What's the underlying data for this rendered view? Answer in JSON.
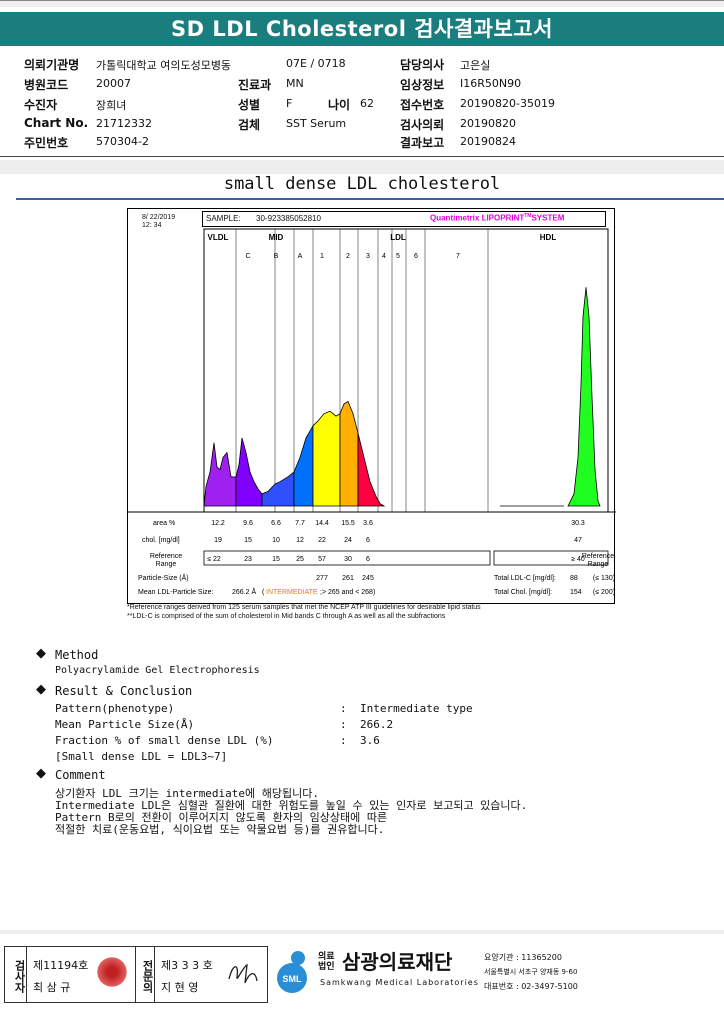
{
  "title": "SD LDL Cholesterol 검사결과보고서",
  "info": {
    "request_org_label": "의뢰기관명",
    "request_org": "가톨릭대학교 여의도성모병동",
    "ward": "07E / 0718",
    "doctor_label": "담당의사",
    "doctor": "고은실",
    "hospital_code_label": "병원코드",
    "hospital_code": "20007",
    "dept_label": "진료과",
    "dept": "MN",
    "clinical_label": "임상정보",
    "clinical": "I16R50N90",
    "patient_label": "수진자",
    "patient": "장희녀",
    "sex_label": "성별",
    "sex": "F",
    "age_label": "나이",
    "age": "62",
    "receipt_label": "접수번호",
    "receipt": "20190820-35019",
    "chart_label": "Chart No.",
    "chart_no": "21712332",
    "specimen_label": "검체",
    "specimen": "SST Serum",
    "test_req_label": "검사의뢰",
    "test_req": "20190820",
    "resident_label": "주민번호",
    "resident": "570304-2",
    "report_label": "결과보고",
    "report": "20190824"
  },
  "section_title": "small dense LDL cholesterol",
  "chart_data": {
    "type": "area",
    "date": "8/ 22/2019",
    "time": "12: 34",
    "sample_label": "SAMPLE:",
    "sample": "30-923385052810",
    "brand": "Quantimetrix LIPOPRINT",
    "brand_tm": "TM",
    "brand_suffix": "SYSTEM",
    "regions": [
      "VLDL",
      "MID",
      "LDL",
      "HDL"
    ],
    "bands": [
      "C",
      "B",
      "A",
      "1",
      "2",
      "3",
      "4",
      "5",
      "6",
      "7"
    ],
    "area_label": "area %",
    "area": [
      "12.2",
      "9.6",
      "6.6",
      "7.7",
      "14.4",
      "15.5",
      "3.6",
      "",
      "",
      "",
      "30.3"
    ],
    "chol_label": "chol. [mg/dl]",
    "chol": [
      "19",
      "15",
      "10",
      "12",
      "22",
      "24",
      "6",
      "",
      "",
      "",
      "47"
    ],
    "ref_label": "Reference Range",
    "ref": [
      "≤ 22",
      "23",
      "15",
      "25",
      "57",
      "30",
      "6",
      "",
      "",
      "",
      "≥ 40"
    ],
    "particle_label": "Particle-Size (Å)",
    "particle": [
      "277",
      "261",
      "245"
    ],
    "mean_label": "Mean LDL-Particle Size:",
    "mean_value": "266.2 Å",
    "mean_type": "INTERMEDIATE",
    "mean_range": "> 265 and < 268",
    "total_ldl_label": "Total LDL-C [mg/dl]:",
    "total_ldl": "88",
    "total_ldl_ref": "(≤ 130)",
    "total_chol_label": "Total Chol. [mg/dl]:",
    "total_chol": "154",
    "total_chol_ref": "(≤ 200)",
    "ref_right_label": "Reference Range",
    "series_colors": {
      "vldl": "#a020f0",
      "mid_c": "#8000ff",
      "mid_b": "#3050ff",
      "mid_a": "#0070ff",
      "ldl1": "#ffff00",
      "ldl2": "#ffb000",
      "ldl3": "#ff0040",
      "hdl": "#20ff20"
    }
  },
  "notes": [
    "*Reference ranges derived from 125 serum samples that met the NCEP ATP III guidelines for desirable lipid status",
    "**LDL-C is comprised of the sum of cholesterol in Mid bands C through A as well as all the subfractions"
  ],
  "method": {
    "heading": "Method",
    "text": "Polyacrylamide Gel Electrophoresis"
  },
  "result": {
    "heading": "Result & Conclusion",
    "rows": [
      {
        "k": "Pattern(phenotype)",
        "v": "Intermediate type"
      },
      {
        "k": "Mean Particle Size(Å)",
        "v": "266.2"
      },
      {
        "k": "Fraction % of small dense LDL (%)",
        "v": "3.6"
      }
    ],
    "sep": ":",
    "extra": "[Small dense LDL = LDL3~7]"
  },
  "comment": {
    "heading": "Comment",
    "lines": [
      "상기환자 LDL 크기는 intermediate에 해당됩니다.",
      "Intermediate LDL은 심혈관 질환에 대한 위험도를 높일 수 있는 인자로 보고되고 있습니다.",
      "Pattern B로의 전환이 이루어지지 않도록 환자의 임상상태에 따른",
      "적절한 치료(운동요법, 식이요법 또는 약물요법 등)를 권유합니다."
    ]
  },
  "footer": {
    "tester_label": "검사자",
    "tester_no": "제11194호",
    "tester_name": "최 삼 규",
    "specialist_label": "전문의",
    "specialist_no": "제3 3 3 호",
    "specialist_name": "지 현 영",
    "org_type": "의료법인",
    "org_name": "삼광의료재단",
    "org_en": "Samkwang Medical Laboratories",
    "logo_text": "SML",
    "org_code": "요양기관 : 11365200",
    "org_addr": "서울특별시 서초구 양재동 9-60",
    "org_tel": "대표번호 : 02-3497-5100"
  }
}
